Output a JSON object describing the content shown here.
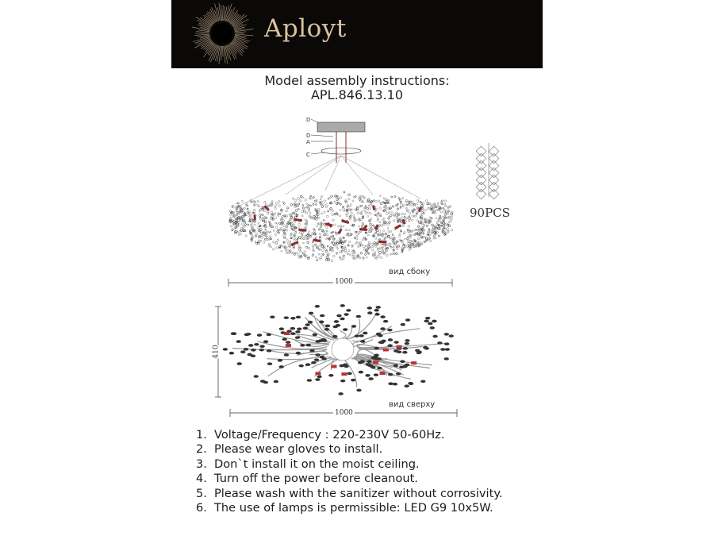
{
  "banner": {
    "brand": "Aployt",
    "background": "#0b0908",
    "accent": "#d9c3a0"
  },
  "title": {
    "line1": "Model assembly instructions:",
    "line2": "APL.846.13.10"
  },
  "side_view": {
    "part_labels": [
      "D",
      "D",
      "A",
      "C"
    ],
    "width_dimension": "1000",
    "caption": "вид сбоку"
  },
  "pendant": {
    "quantity": "90PCS"
  },
  "top_view": {
    "height_dimension": "410",
    "width_dimension": "1000",
    "caption": "вид сверху"
  },
  "instructions": [
    {
      "num": "1.",
      "text": "Voltage/Frequency : 220-230V 50-60Hz."
    },
    {
      "num": "2.",
      "text": "Please wear gloves to install."
    },
    {
      "num": "3.",
      "text": "Don`t install it on the moist ceiling."
    },
    {
      "num": "4.",
      "text": "Turn off the power before cleanout."
    },
    {
      "num": "5.",
      "text": "Please wash with the sanitizer without corrosivity."
    },
    {
      "num": "6.",
      "text": "The use of lamps is permissible: LED G9 10x5W."
    }
  ]
}
